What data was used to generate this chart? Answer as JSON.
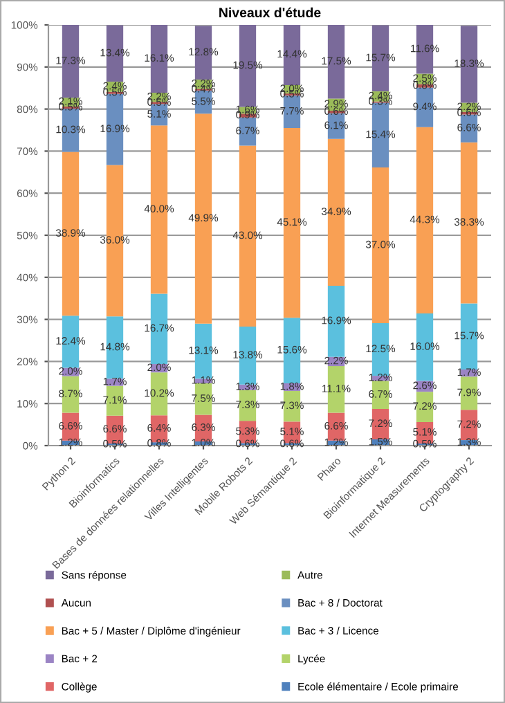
{
  "chart_data": {
    "type": "bar",
    "stacked": true,
    "title": "Niveaux d'étude",
    "categories": [
      "Python 2",
      "Bioinformatics",
      "Bases de données relationnelles",
      "Villes Intelligentes",
      "Mobile Robots 2",
      "Web Sémantique 2",
      "Pharo",
      "Bioinformatique 2",
      "Internet Measurements",
      "Cryptography 2"
    ],
    "series": [
      {
        "name": "Ecole élémentaire / Ecole primaire",
        "color": "#4f81bd",
        "values": [
          1.2,
          0.5,
          0.8,
          1.0,
          0.6,
          0.6,
          1.2,
          1.5,
          0.5,
          1.3
        ],
        "value_labels": [
          "1.2%",
          "0.5%",
          "0.8%",
          "1.0%",
          "0.6%",
          "0.6%",
          "1.2%",
          "1.5%",
          "0.5%",
          "1.3%"
        ]
      },
      {
        "name": "Collège",
        "color": "#e06666",
        "values": [
          6.6,
          6.6,
          6.4,
          6.3,
          5.3,
          5.1,
          6.6,
          7.2,
          5.1,
          7.2
        ],
        "value_labels": [
          "6.6%",
          "6.6%",
          "6.4%",
          "6.3%",
          "5.3%",
          "5.1%",
          "6.6%",
          "7.2%",
          "5.1%",
          "7.2%"
        ]
      },
      {
        "name": "Lycée",
        "color": "#b3d36a",
        "values": [
          8.7,
          7.1,
          10.2,
          7.5,
          7.3,
          7.3,
          11.1,
          6.7,
          7.2,
          7.9
        ],
        "value_labels": [
          "8.7%",
          "7.1%",
          "10.2%",
          "7.5%",
          "7.3%",
          "7.3%",
          "11.1%",
          "6.7%",
          "7.2%",
          "7.9%"
        ]
      },
      {
        "name": "Bac + 2",
        "color": "#9b84c4",
        "values": [
          2.0,
          1.7,
          2.0,
          1.1,
          1.3,
          1.8,
          2.2,
          1.2,
          2.6,
          1.7
        ],
        "value_labels": [
          "2.0%",
          "1.7%",
          "2.0%",
          "1.1%",
          "1.3%",
          "1.8%",
          "2.2%",
          "1.2%",
          "2.6%",
          "1.7%"
        ]
      },
      {
        "name": "Bac + 3 / Licence",
        "color": "#5bc0de",
        "values": [
          12.4,
          14.8,
          16.7,
          13.1,
          13.8,
          15.6,
          16.9,
          12.5,
          16.0,
          15.7
        ],
        "value_labels": [
          "12.4%",
          "14.8%",
          "16.7%",
          "13.1%",
          "13.8%",
          "15.6%",
          "16.9%",
          "12.5%",
          "16.0%",
          "15.7%"
        ]
      },
      {
        "name": "Bac + 5 / Master / Diplôme d'ingénieur",
        "color": "#f9a054",
        "values": [
          38.9,
          36.0,
          40.0,
          49.9,
          43.0,
          45.1,
          34.9,
          37.0,
          44.3,
          38.3
        ],
        "value_labels": [
          "38.9%",
          "36.0%",
          "40.0%",
          "49.9%",
          "43.0%",
          "45.1%",
          "34.9%",
          "37.0%",
          "44.3%",
          "38.3%"
        ]
      },
      {
        "name": "Bac + 8 / Doctorat",
        "color": "#6a8fc0",
        "values": [
          10.3,
          16.9,
          5.1,
          5.5,
          6.7,
          7.7,
          6.1,
          15.4,
          9.4,
          6.6
        ],
        "value_labels": [
          "10.3%",
          "16.9%",
          "5.1%",
          "5.5%",
          "6.7%",
          "7.7%",
          "6.1%",
          "15.4%",
          "9.4%",
          "6.6%"
        ]
      },
      {
        "name": "Aucun",
        "color": "#b05050",
        "values": [
          0.5,
          0.5,
          0.5,
          0.4,
          0.9,
          0.5,
          0.6,
          0.3,
          0.8,
          0.6
        ],
        "value_labels": [
          "0.5%",
          "0.5%",
          "0.5%",
          "0.4%",
          "0.9%",
          "0.5%",
          "0.6%",
          "0.3%",
          "0.8%",
          "0.6%"
        ]
      },
      {
        "name": "Autre",
        "color": "#9bbb59",
        "values": [
          2.1,
          2.4,
          2.2,
          2.2,
          1.6,
          2.0,
          2.9,
          2.4,
          2.5,
          2.2
        ],
        "value_labels": [
          "2.1%",
          "2.4%",
          "2.2%",
          "2.2%",
          "1.6%",
          "2.0%",
          "2.9%",
          "2.4%",
          "2.5%",
          "2.2%"
        ]
      },
      {
        "name": "Sans réponse",
        "color": "#7a6a9a",
        "values": [
          17.3,
          13.4,
          16.1,
          12.8,
          19.5,
          14.4,
          17.5,
          15.7,
          11.6,
          18.3
        ],
        "value_labels": [
          "17.3%",
          "13.4%",
          "16.1%",
          "12.8%",
          "19.5%",
          "14.4%",
          "17.5%",
          "15.7%",
          "11.6%",
          "18.3%"
        ]
      }
    ],
    "ylim": [
      0,
      100
    ],
    "yticks": [
      {
        "value": 0,
        "label": "0%"
      },
      {
        "value": 10,
        "label": "10%"
      },
      {
        "value": 20,
        "label": "20%"
      },
      {
        "value": 30,
        "label": "30%"
      },
      {
        "value": 40,
        "label": "40%"
      },
      {
        "value": 50,
        "label": "50%"
      },
      {
        "value": 60,
        "label": "60%"
      },
      {
        "value": 70,
        "label": "70%"
      },
      {
        "value": 80,
        "label": "80%"
      },
      {
        "value": 90,
        "label": "90%"
      },
      {
        "value": 100,
        "label": "100%"
      }
    ],
    "grid": "y",
    "legend": "bottom"
  }
}
